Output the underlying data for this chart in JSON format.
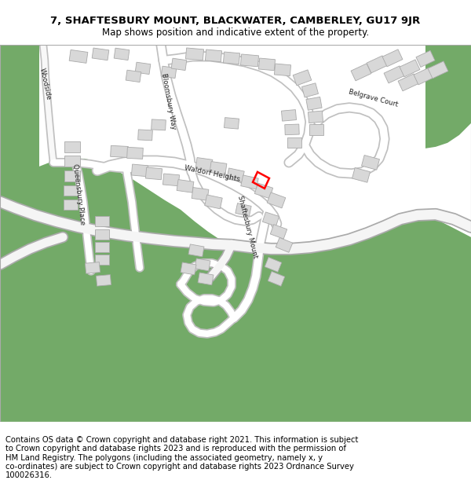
{
  "title_line1": "7, SHAFTESBURY MOUNT, BLACKWATER, CAMBERLEY, GU17 9JR",
  "title_line2": "Map shows position and indicative extent of the property.",
  "footer_text": "Contains OS data © Crown copyright and database right 2021. This information is subject to Crown copyright and database rights 2023 and is reproduced with the permission of HM Land Registry. The polygons (including the associated geometry, namely x, y co-ordinates) are subject to Crown copyright and database rights 2023 Ordnance Survey 100026316.",
  "title_fontsize": 9.5,
  "subtitle_fontsize": 8.5,
  "footer_fontsize": 7.2,
  "map_bg": "#f2f2f2",
  "road_color": "#ffffff",
  "building_fill": "#d8d8d8",
  "building_stroke": "#aaaaaa",
  "green_color": "#73aa68",
  "property_color": "#ff0000",
  "label_fontsize": 6.2,
  "border_color": "#cccccc"
}
